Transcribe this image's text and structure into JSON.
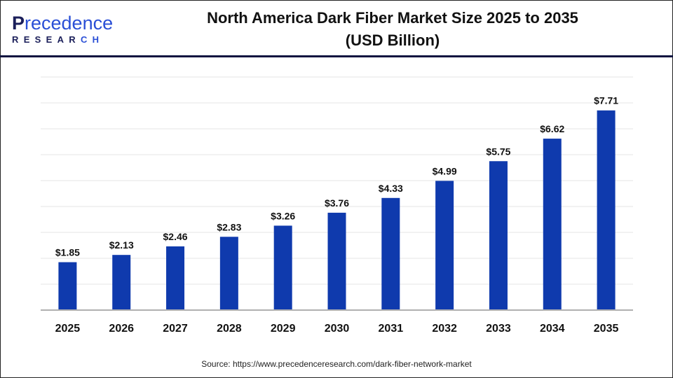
{
  "logo": {
    "line1_initial": "P",
    "line1_rest": "recedence",
    "line2_main": "RESEAR",
    "line2_accent": "CH"
  },
  "title_line1": "North America Dark Fiber Market Size 2025 to 2035",
  "title_line2": "(USD Billion)",
  "source": "Source: https://www.precedenceresearch.com/dark-fiber-network-market",
  "colors": {
    "bar": "#0f3aad",
    "grid": "#e6e6e6",
    "axis": "#b0b0b0",
    "header_rule": "#0d1440"
  },
  "chart_data": {
    "type": "bar",
    "title": "North America Dark Fiber Market Size 2025 to 2035 (USD Billion)",
    "categories": [
      "2025",
      "2026",
      "2027",
      "2028",
      "2029",
      "2030",
      "2031",
      "2032",
      "2033",
      "2034",
      "2035"
    ],
    "values": [
      1.85,
      2.13,
      2.46,
      2.83,
      3.26,
      3.76,
      4.33,
      4.99,
      5.75,
      6.62,
      7.71
    ],
    "data_labels": [
      "$1.85",
      "$2.13",
      "$2.46",
      "$2.83",
      "$3.26",
      "$3.76",
      "$4.33",
      "$4.99",
      "$5.75",
      "$6.62",
      "$7.71"
    ],
    "xlabel": "",
    "ylabel": "",
    "ylim": [
      0,
      9
    ],
    "grid": true,
    "y_tick_labels_shown": false
  }
}
